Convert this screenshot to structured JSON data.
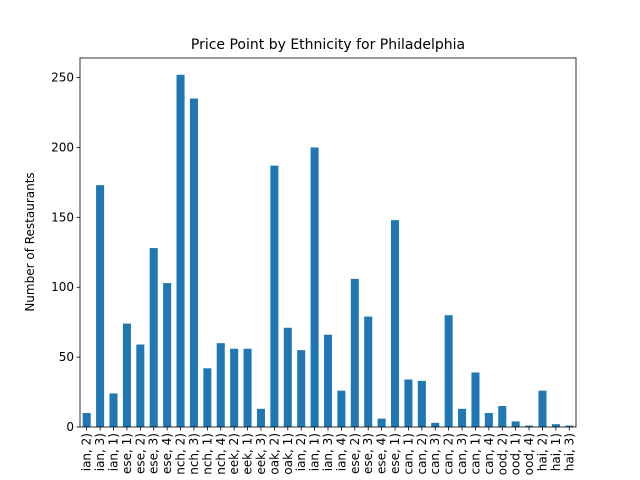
{
  "chart_data": {
    "type": "bar",
    "title": "Price Point by Ethnicity for Philadelphia",
    "ylabel": "Number of Restaurants",
    "categories": [
      "ian, 2)",
      "ian, 3)",
      "ian, 1)",
      "ese, 1)",
      "ese, 2)",
      "ese, 3)",
      "ese, 4)",
      "nch, 2)",
      "nch, 3)",
      "nch, 1)",
      "nch, 4)",
      "eek, 2)",
      "eek, 1)",
      "eek, 3)",
      "oak, 2)",
      "oak, 1)",
      "ian, 2)",
      "ian, 1)",
      "ian, 3)",
      "ian, 4)",
      "ese, 2)",
      "ese, 3)",
      "ese, 4)",
      "ese, 1)",
      "can, 1)",
      "can, 2)",
      "can, 3)",
      "can, 2)",
      "can, 3)",
      "can, 1)",
      "can, 4)",
      "ood, 2)",
      "ood, 1)",
      "ood, 4)",
      "hai, 2)",
      "hai, 1)",
      "hai, 3)"
    ],
    "values": [
      10,
      173,
      24,
      74,
      59,
      128,
      103,
      252,
      235,
      42,
      60,
      56,
      56,
      13,
      187,
      71,
      55,
      200,
      66,
      26,
      106,
      79,
      6,
      148,
      34,
      33,
      3,
      80,
      13,
      39,
      10,
      15,
      4,
      1,
      26,
      2,
      1
    ],
    "color": "#1f77b4",
    "ylim": [
      0,
      264
    ],
    "yticks": [
      0,
      50,
      100,
      150,
      200,
      250
    ]
  }
}
